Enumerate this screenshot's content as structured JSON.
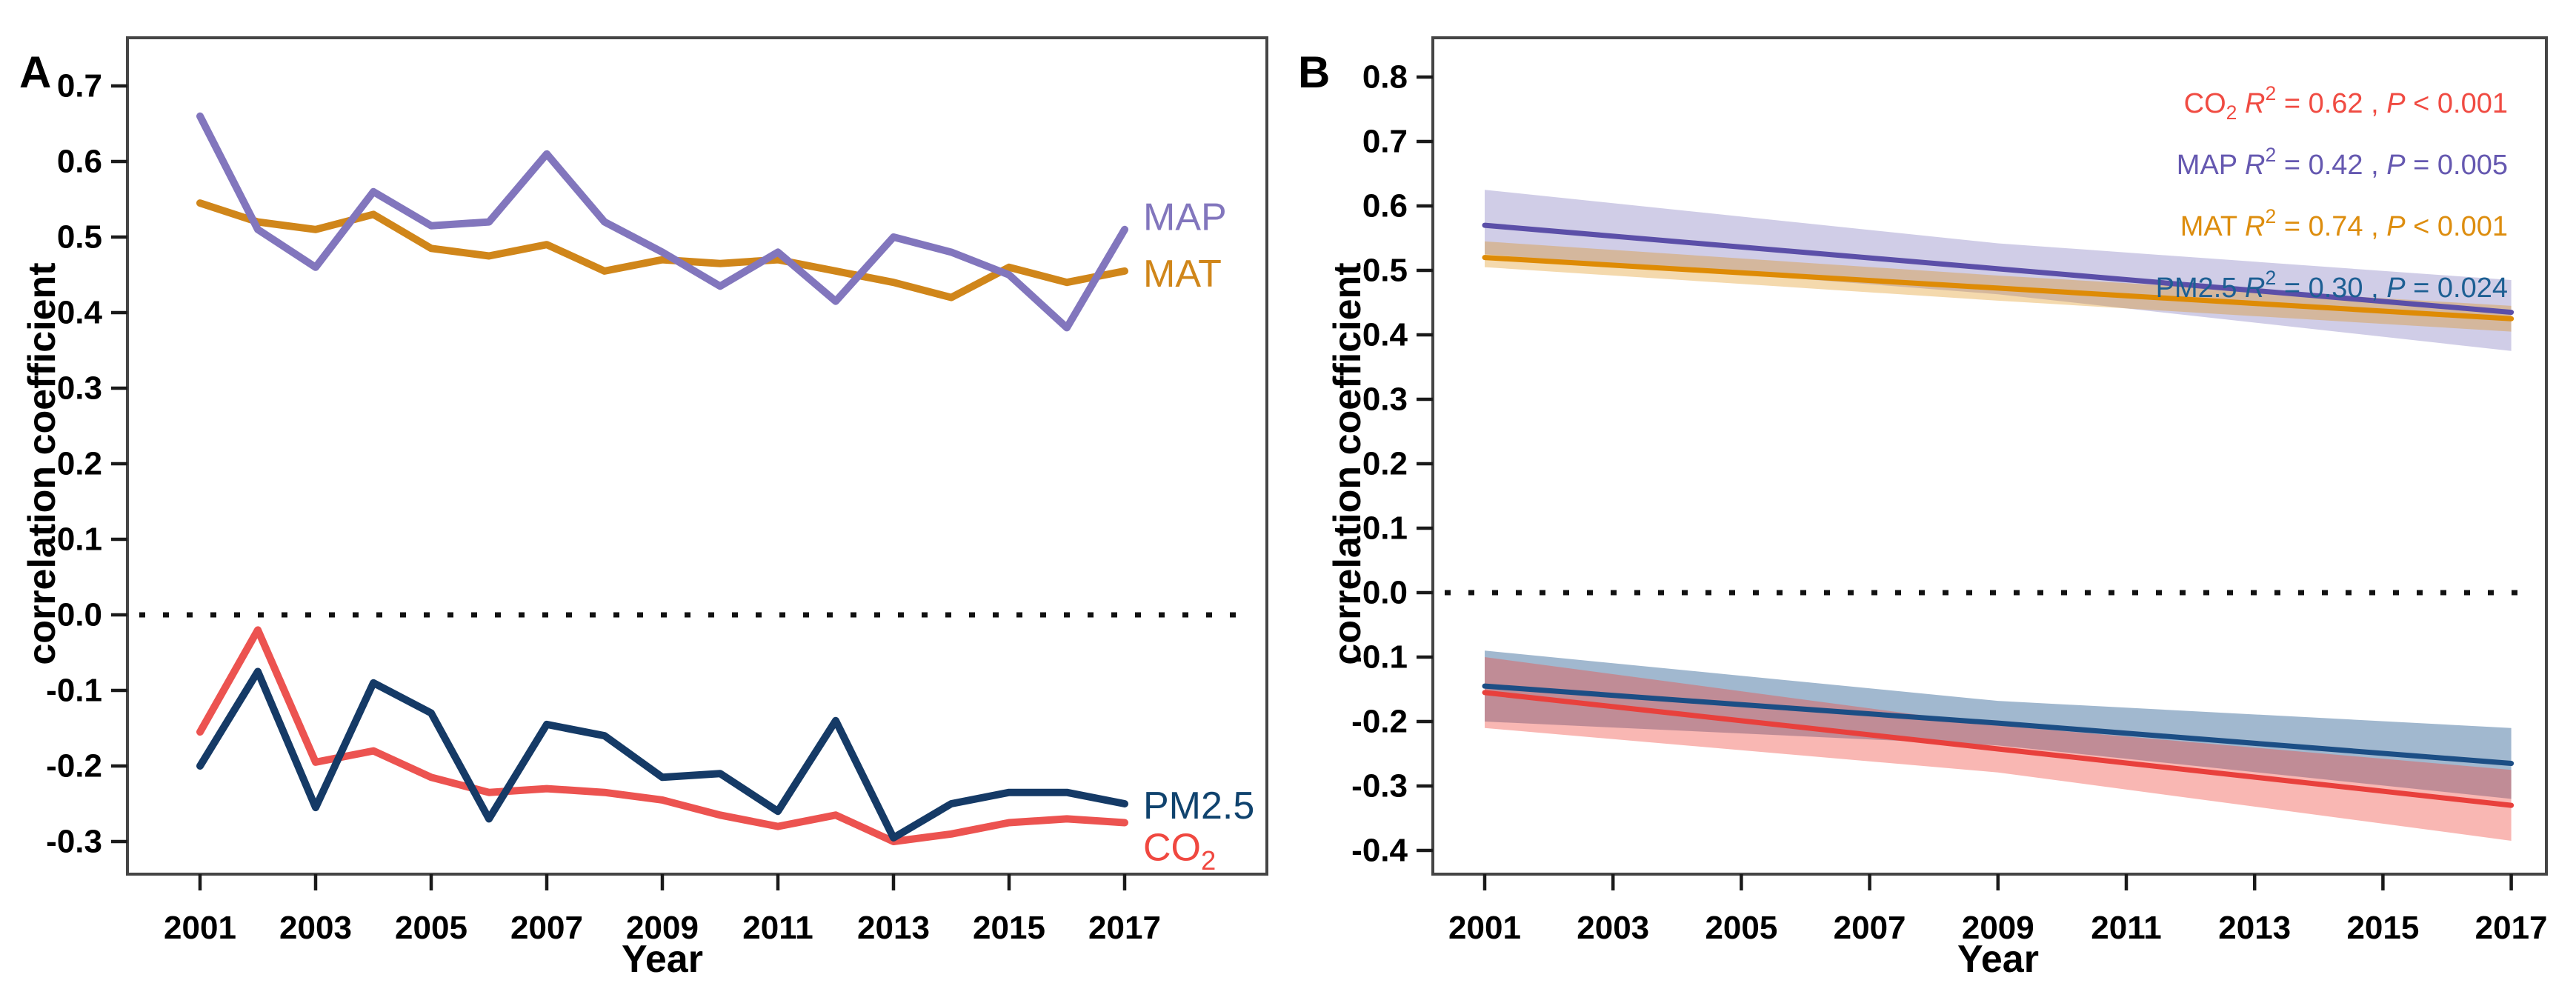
{
  "figure": {
    "y_axis_title": "correlation coefficient",
    "x_axis_title": "Year",
    "background_color": "#ffffff",
    "border_color": "#454545",
    "tick_color": "#1a1a1a",
    "zero_line_color": "#111111"
  },
  "chart_data": [
    {
      "id": "A",
      "type": "line",
      "panel_label": "A",
      "xlabel": "Year",
      "ylabel": "correlation coefficient",
      "x": [
        2001,
        2002,
        2003,
        2004,
        2005,
        2006,
        2007,
        2008,
        2009,
        2010,
        2011,
        2012,
        2013,
        2014,
        2015,
        2016,
        2017
      ],
      "x_ticks": [
        2001,
        2003,
        2005,
        2007,
        2009,
        2011,
        2013,
        2015,
        2017
      ],
      "y_ticks": [
        0.7,
        0.6,
        0.5,
        0.4,
        0.3,
        0.2,
        0.1,
        0.0,
        -0.1,
        -0.2,
        -0.3
      ],
      "ylim": [
        -0.34,
        0.71
      ],
      "xlim": [
        2001,
        2017
      ],
      "grid": false,
      "zero_line": true,
      "series": [
        {
          "name": "MAT",
          "color": "#d0861a",
          "line_width": 10,
          "values": [
            0.545,
            0.52,
            0.51,
            0.53,
            0.485,
            0.475,
            0.49,
            0.455,
            0.47,
            0.465,
            0.47,
            0.455,
            0.44,
            0.42,
            0.46,
            0.44,
            0.455
          ],
          "end_label": {
            "text": "MAT",
            "sub": "",
            "y": 0.452,
            "color": "#d0861a"
          }
        },
        {
          "name": "MAP",
          "color": "#8276bd",
          "line_width": 10,
          "values": [
            0.66,
            0.51,
            0.46,
            0.56,
            0.515,
            0.52,
            0.61,
            0.52,
            0.48,
            0.435,
            0.48,
            0.415,
            0.5,
            0.48,
            0.45,
            0.38,
            0.51
          ],
          "end_label": {
            "text": "MAP",
            "sub": "",
            "y": 0.527,
            "color": "#8276bd"
          }
        },
        {
          "name": "CO2",
          "color": "#ec5350",
          "line_width": 10,
          "values": [
            -0.155,
            -0.02,
            -0.195,
            -0.18,
            -0.215,
            -0.235,
            -0.23,
            -0.235,
            -0.245,
            -0.265,
            -0.28,
            -0.265,
            -0.3,
            -0.29,
            -0.275,
            -0.27,
            -0.275
          ],
          "end_label": {
            "text": "CO",
            "sub": "2",
            "y": -0.307,
            "color": "#f04840"
          }
        },
        {
          "name": "PM2.5",
          "color": "#153a66",
          "line_width": 10,
          "values": [
            -0.2,
            -0.075,
            -0.255,
            -0.09,
            -0.13,
            -0.27,
            -0.145,
            -0.16,
            -0.215,
            -0.21,
            -0.26,
            -0.14,
            -0.295,
            -0.25,
            -0.235,
            -0.235,
            -0.25
          ],
          "end_label": {
            "text": "PM2.5",
            "sub": "",
            "y": -0.252,
            "color": "#10436e"
          }
        }
      ]
    },
    {
      "id": "B",
      "type": "line",
      "panel_label": "B",
      "xlabel": "Year",
      "ylabel": "correlation coefficient",
      "x_ticks": [
        2001,
        2003,
        2005,
        2007,
        2009,
        2011,
        2013,
        2015,
        2017
      ],
      "y_ticks": [
        0.8,
        0.7,
        0.6,
        0.5,
        0.4,
        0.3,
        0.2,
        0.1,
        0.0,
        -0.1,
        -0.2,
        -0.3,
        -0.4
      ],
      "ylim": [
        -0.45,
        0.86
      ],
      "xlim": [
        2001,
        2017
      ],
      "grid": false,
      "zero_line": true,
      "series": [
        {
          "name": "MAP",
          "color": "#5b4fa8",
          "line_width": 7,
          "x": [
            2001,
            2009,
            2017
          ],
          "values": [
            0.57,
            0.5025,
            0.435
          ],
          "band": {
            "fill": "rgba(101,88,176,0.30)",
            "x": [
              2001,
              2009,
              2017
            ],
            "upper": [
              0.625,
              0.542,
              0.485
            ],
            "lower": [
              0.525,
              0.463,
              0.375
            ]
          }
        },
        {
          "name": "MAT",
          "color": "#de8b05",
          "line_width": 7,
          "x": [
            2001,
            2009,
            2017
          ],
          "values": [
            0.52,
            0.4725,
            0.425
          ],
          "band": {
            "fill": "rgba(222,139,5,0.33)",
            "x": [
              2001,
              2009,
              2017
            ],
            "upper": [
              0.545,
              0.492,
              0.445
            ],
            "lower": [
              0.505,
              0.453,
              0.405
            ]
          }
        },
        {
          "name": "PM2.5",
          "color": "#1c4e85",
          "line_width": 7,
          "x": [
            2001,
            2009,
            2017
          ],
          "values": [
            -0.145,
            -0.2025,
            -0.265
          ],
          "band": {
            "fill": "rgba(30,86,140,0.42)",
            "x": [
              2001,
              2009,
              2017
            ],
            "upper": [
              -0.09,
              -0.168,
              -0.21
            ],
            "lower": [
              -0.2,
              -0.237,
              -0.32
            ]
          }
        },
        {
          "name": "CO2",
          "color": "#e8403c",
          "line_width": 7,
          "x": [
            2001,
            2009,
            2017
          ],
          "values": [
            -0.155,
            -0.2425,
            -0.33
          ],
          "band": {
            "fill": "rgba(240,75,66,0.40)",
            "x": [
              2001,
              2009,
              2017
            ],
            "upper": [
              -0.1,
              -0.206,
              -0.275
            ],
            "lower": [
              -0.21,
              -0.279,
              -0.385
            ]
          }
        }
      ],
      "legend": {
        "position": "top-right",
        "rows": [
          {
            "name": "CO",
            "name_sub": "2",
            "r2": "0.62",
            "p": "< 0.001",
            "color": "#f04b42"
          },
          {
            "name": "MAP",
            "name_sub": "",
            "r2": "0.42",
            "p": "= 0.005",
            "color": "#6558b0"
          },
          {
            "name": "MAT",
            "name_sub": "",
            "r2": "0.74",
            "p": "< 0.001",
            "color": "#dd8d0e"
          },
          {
            "name": "PM2.5",
            "name_sub": "",
            "r2": "0.30",
            "p": "= 0.024",
            "color": "#1d5f93"
          }
        ]
      }
    }
  ]
}
